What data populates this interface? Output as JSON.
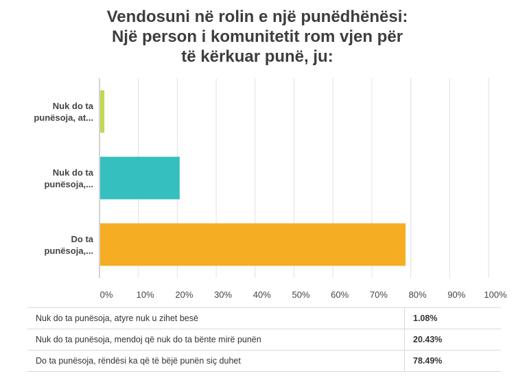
{
  "title": "Vendosuni në rolin e një punëdhënësi: Një person i komunitetit rom vjen për të kërkuar punë, ju:",
  "colors": {
    "grid": "#e2e2e2",
    "axis": "#aaaaaa",
    "label": "#444444"
  },
  "chart_data": {
    "type": "bar",
    "orientation": "horizontal",
    "categories": [
      [
        "Nuk do ta",
        "punësoja, at..."
      ],
      [
        "Nuk do ta",
        "punësoja,..."
      ],
      [
        "Do ta",
        "punësoja,..."
      ]
    ],
    "values": [
      1.08,
      20.43,
      78.49
    ],
    "colors": [
      "#c5d654",
      "#35bfbf",
      "#f5ad23"
    ],
    "xlim": [
      0,
      100
    ],
    "xticks": [
      "0%",
      "10%",
      "20%",
      "30%",
      "40%",
      "50%",
      "60%",
      "70%",
      "80%",
      "90%",
      "100%"
    ],
    "grid": true
  },
  "table": {
    "rows": [
      {
        "label": "Nuk do ta punësoja, atyre nuk u zihet besë",
        "value": "1.08%"
      },
      {
        "label": "Nuk do ta punësoja, mendoj që nuk do ta bënte mirë punën",
        "value": "20.43%"
      },
      {
        "label": "Do ta punësoja, rëndësi ka që të bëjë punën siç duhet",
        "value": "78.49%"
      }
    ]
  }
}
